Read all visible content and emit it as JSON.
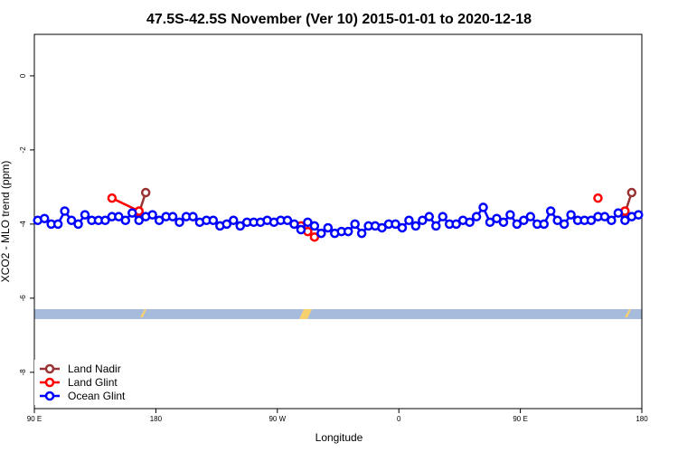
{
  "chart_data": {
    "type": "line",
    "title": "47.5S-42.5S November (Ver 10)   2015-01-01 to 2020-12-18",
    "x_label": "Longitude",
    "y_label": "XCO2 - MLO trend (ppm)",
    "xlim": [
      90,
      540
    ],
    "xticks": [
      {
        "value": 90,
        "label": "90 E"
      },
      180,
      {
        "value": 270,
        "label": "90 W"
      },
      {
        "value": 360,
        "label": "0"
      },
      {
        "value": 450,
        "label": "90 E"
      },
      {
        "value": 540,
        "label": "180"
      }
    ],
    "ylim": [
      -8.98,
      1.12
    ],
    "yticks": [
      0,
      -2,
      -4,
      -6,
      -8
    ],
    "legend": "bottom-left",
    "series": [
      {
        "name": "Land Nadir",
        "color": "#993333",
        "x": [
          172.5,
          167.5,
          null,
          532.5,
          527.5
        ],
        "values": [
          -3.15,
          -3.7,
          null,
          -3.15,
          -3.7
        ]
      },
      {
        "name": "Land Glint",
        "color": "#ff0000",
        "x": [
          147.5,
          167.5,
          null,
          287.5,
          292.5,
          297.5,
          null,
          507.5,
          null,
          527.5
        ],
        "values": [
          -3.3,
          -3.65,
          null,
          -4.05,
          -4.2,
          -4.35,
          null,
          -3.3,
          null,
          -3.65
        ]
      },
      {
        "name": "Ocean Glint",
        "color": "#0000ff",
        "x": [
          92.5,
          97.5,
          102.5,
          107.5,
          112.5,
          117.5,
          122.5,
          127.5,
          132.5,
          137.5,
          142.5,
          147.5,
          152.5,
          157.5,
          162.5,
          167.5,
          172.5,
          177.5,
          182.5,
          187.5,
          192.5,
          197.5,
          202.5,
          207.5,
          212.5,
          217.5,
          222.5,
          227.5,
          232.5,
          237.5,
          242.5,
          247.5,
          252.5,
          257.5,
          262.5,
          267.5,
          272.5,
          277.5,
          282.5,
          287.5,
          292.5,
          297.5,
          302.5,
          307.5,
          312.5,
          317.5,
          322.5,
          327.5,
          332.5,
          337.5,
          342.5,
          347.5,
          352.5,
          357.5,
          362.5,
          367.5,
          372.5,
          377.5,
          382.5,
          387.5,
          392.5,
          397.5,
          402.5,
          407.5,
          412.5,
          417.5,
          422.5,
          427.5,
          432.5,
          437.5,
          442.5,
          447.5,
          452.5,
          457.5,
          462.5,
          467.5,
          472.5,
          477.5,
          482.5,
          487.5,
          492.5,
          497.5,
          502.5,
          507.5,
          512.5,
          517.5,
          522.5,
          527.5,
          532.5,
          537.5
        ],
        "values": [
          -3.9,
          -3.85,
          -4.0,
          -4.0,
          -3.65,
          -3.9,
          -4.0,
          -3.75,
          -3.9,
          -3.9,
          -3.9,
          -3.8,
          -3.8,
          -3.9,
          -3.7,
          -3.9,
          -3.8,
          -3.75,
          -3.9,
          -3.8,
          -3.8,
          -3.95,
          -3.8,
          -3.8,
          -3.95,
          -3.9,
          -3.9,
          -4.05,
          -4.0,
          -3.9,
          -4.05,
          -3.95,
          -3.95,
          -3.95,
          -3.9,
          -3.95,
          -3.9,
          -3.9,
          -4.0,
          -4.15,
          -3.95,
          -4.05,
          -4.25,
          -4.1,
          -4.25,
          -4.2,
          -4.2,
          -4.0,
          -4.25,
          -4.05,
          -4.05,
          -4.1,
          -4.0,
          -4.0,
          -4.1,
          -3.9,
          -4.05,
          -3.9,
          -3.8,
          -4.05,
          -3.8,
          -4.0,
          -4.0,
          -3.9,
          -3.95,
          -3.8,
          -3.55,
          -3.95,
          -3.85,
          -3.95,
          -3.75,
          -4.0,
          -3.9,
          -3.8,
          -4.0,
          -4.0,
          -3.65,
          -3.9,
          -4.0,
          -3.75,
          -3.9,
          -3.9,
          -3.9,
          -3.8,
          -3.8,
          -3.9,
          -3.7,
          -3.9,
          -3.8,
          -3.75
        ]
      }
    ]
  }
}
